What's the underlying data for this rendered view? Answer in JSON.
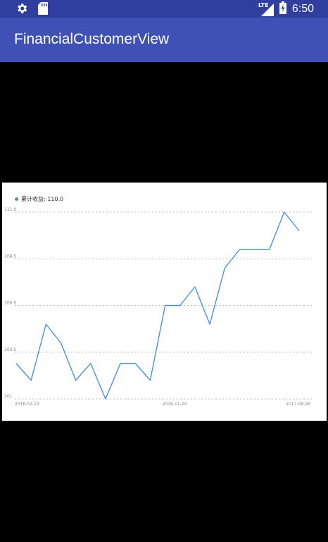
{
  "status_bar": {
    "time": "6:50",
    "network_label": "LTE",
    "icons": [
      "settings-icon",
      "sd-card-icon",
      "signal-icon",
      "battery-icon"
    ]
  },
  "app_bar": {
    "title": "FinancialCustomerView"
  },
  "colors": {
    "status_bar": "#303F9F",
    "app_bar": "#3F51B5",
    "line": "#4A90E2"
  },
  "legend": {
    "label": "累计收益: 110.0"
  },
  "chart_data": {
    "type": "line",
    "title": "",
    "xlabel": "",
    "ylabel": "",
    "ylim": [
      101,
      111
    ],
    "y_ticks": [
      "101",
      "103.5",
      "106.0",
      "108.5",
      "111.0"
    ],
    "x_ticks": [
      "2016-02-23",
      "2016-11-24",
      "2017-09-26"
    ],
    "grid": true,
    "legend_position": "top-left",
    "series": [
      {
        "name": "累计收益",
        "values": [
          102.9,
          102.0,
          105.0,
          104.0,
          102.0,
          102.9,
          101.0,
          102.9,
          102.9,
          102.0,
          106.0,
          106.0,
          107.0,
          105.0,
          108.0,
          109.0,
          109.0,
          109.0,
          111.0,
          110.0
        ]
      }
    ]
  }
}
